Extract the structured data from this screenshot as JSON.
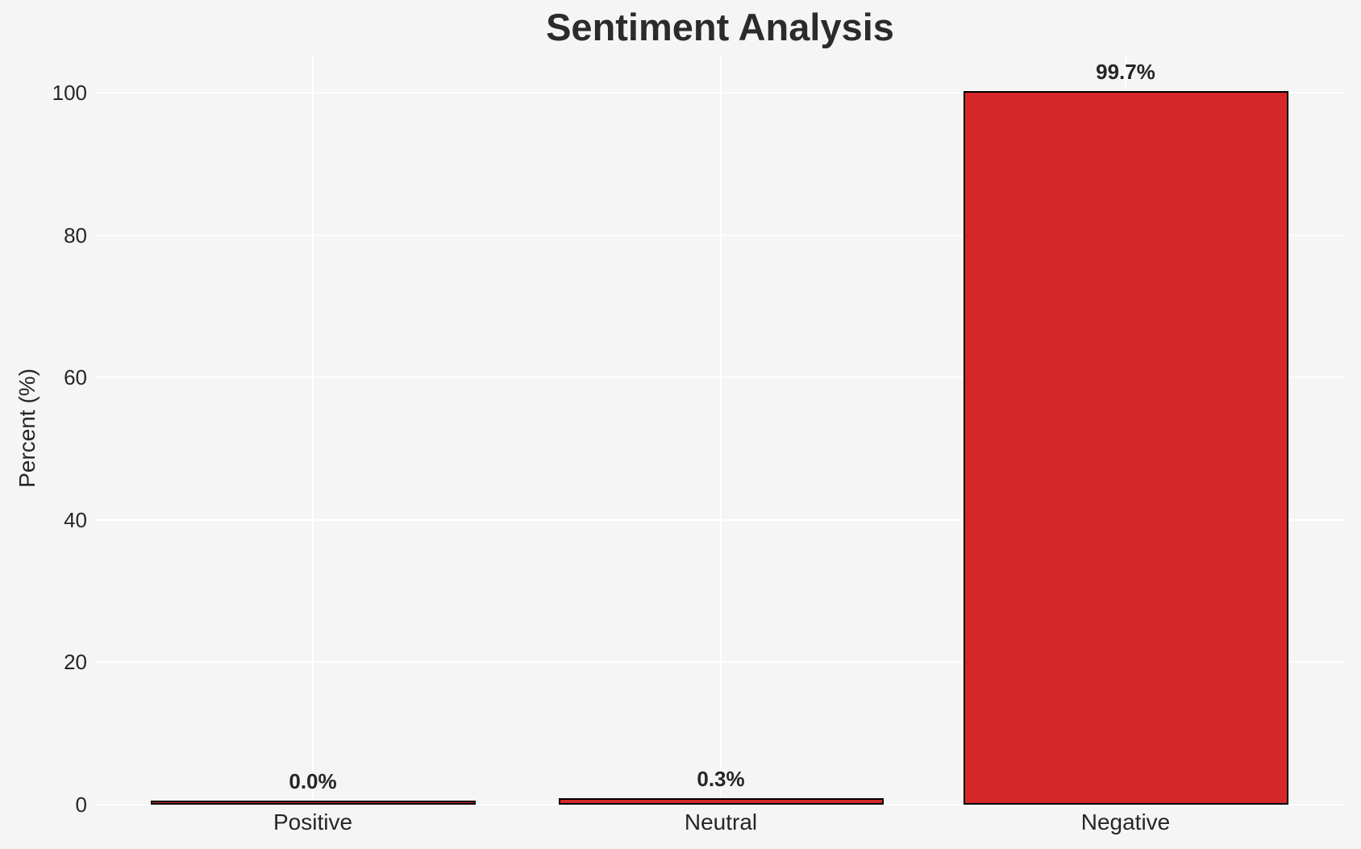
{
  "chart_data": {
    "type": "bar",
    "title": "Sentiment Analysis",
    "xlabel": "",
    "ylabel": "Percent (%)",
    "categories": [
      "Positive",
      "Neutral",
      "Negative"
    ],
    "values": [
      0.0,
      0.3,
      99.7
    ],
    "bar_labels": [
      "0.0%",
      "0.3%",
      "99.7%"
    ],
    "yticks": [
      0,
      20,
      40,
      60,
      80,
      100
    ],
    "ylim": [
      0,
      106
    ],
    "grid": "on",
    "legend": "none",
    "colors": {
      "bar_fill": "#d62728",
      "bar_edge": "#000000",
      "background": "#f5f5f6",
      "gridline": "#ffffff",
      "text": "#262626"
    }
  }
}
